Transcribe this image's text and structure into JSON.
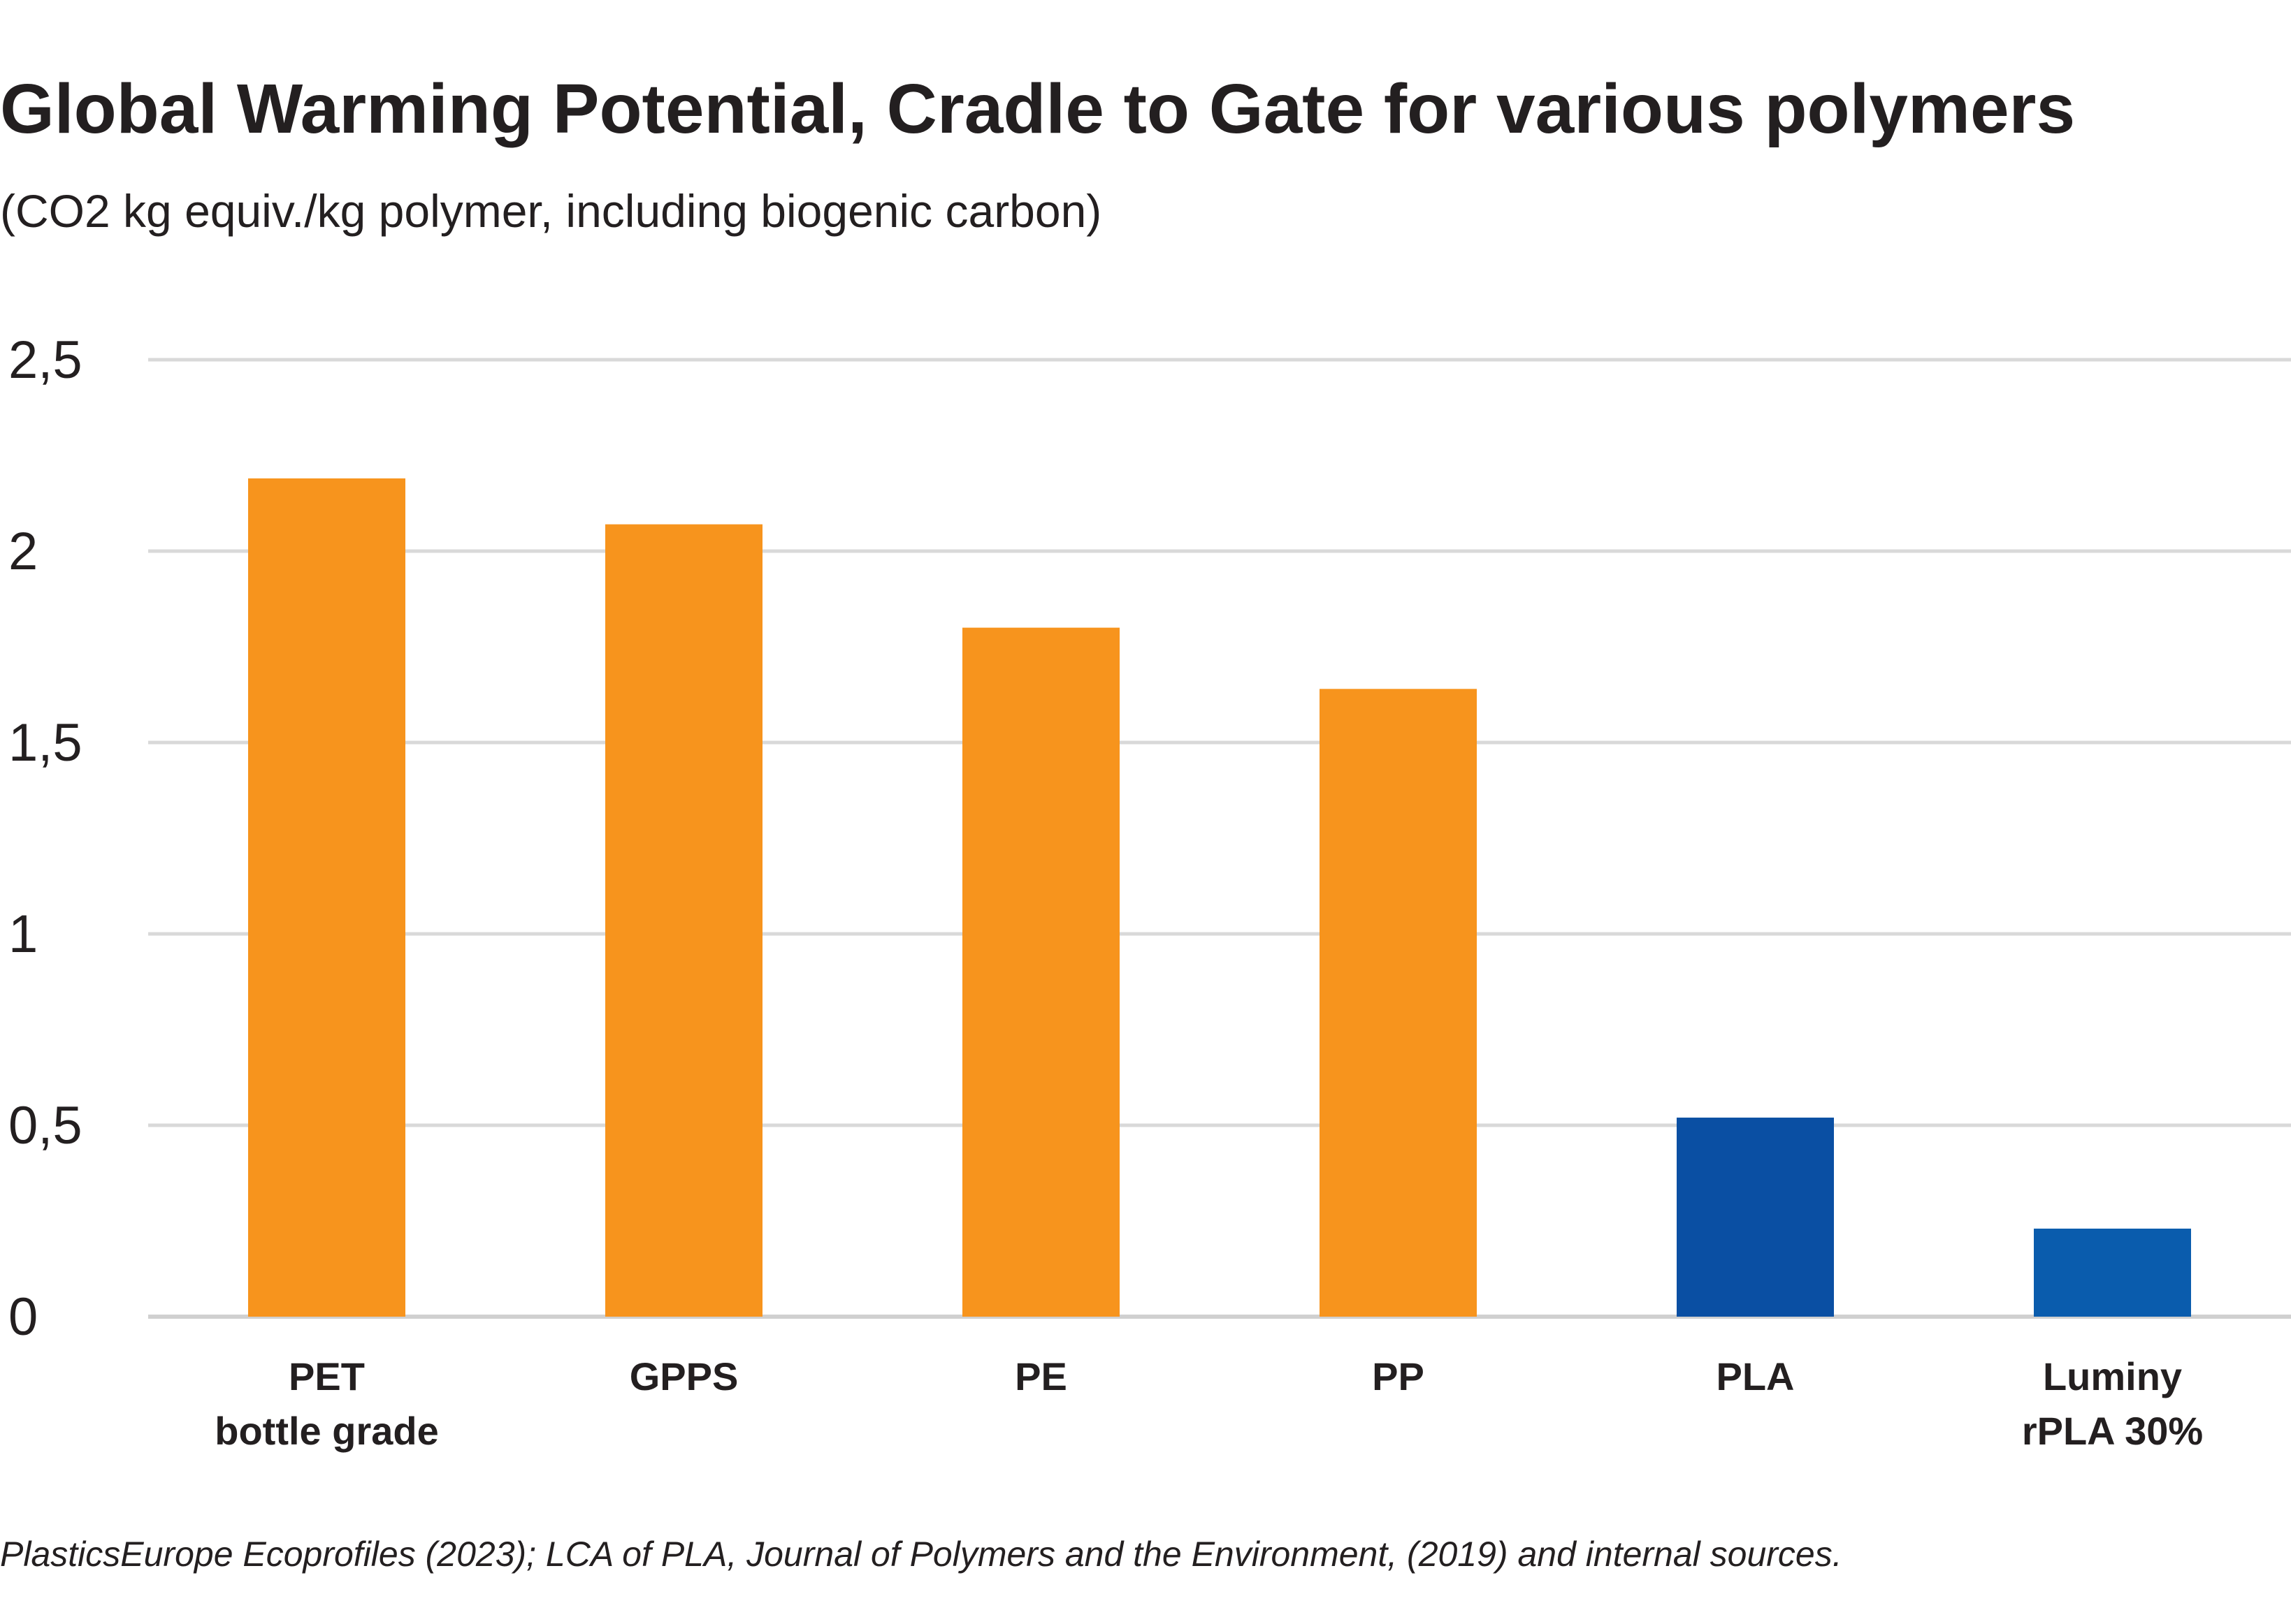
{
  "chart_data": {
    "type": "bar",
    "title": "Global Warming Potential, Cradle to Gate for various polymers",
    "subtitle": "(CO2 kg equiv./kg polymer, including biogenic carbon)",
    "categories": [
      [
        "PET",
        "bottle grade"
      ],
      [
        "GPPS"
      ],
      [
        "PE"
      ],
      [
        "PP"
      ],
      [
        "PLA"
      ],
      [
        "Luminy",
        "rPLA 30%"
      ]
    ],
    "values": [
      2.19,
      2.07,
      1.8,
      1.64,
      0.52,
      0.23
    ],
    "bar_colors": [
      "#f7941d",
      "#f7941d",
      "#f7941d",
      "#f7941d",
      "#0a4fa3",
      "#0a5cad"
    ],
    "ylim": [
      0,
      2.5
    ],
    "y_ticks": [
      0,
      0.5,
      1,
      1.5,
      2,
      2.5
    ],
    "y_tick_labels": [
      "0",
      "0,5",
      "1",
      "1,5",
      "2",
      "2,5"
    ],
    "grid": true,
    "legend": "none",
    "source": "PlasticsEurope Ecoprofiles (2023); LCA of PLA, Journal of Polymers and the Environment, (2019) and internal sources."
  }
}
